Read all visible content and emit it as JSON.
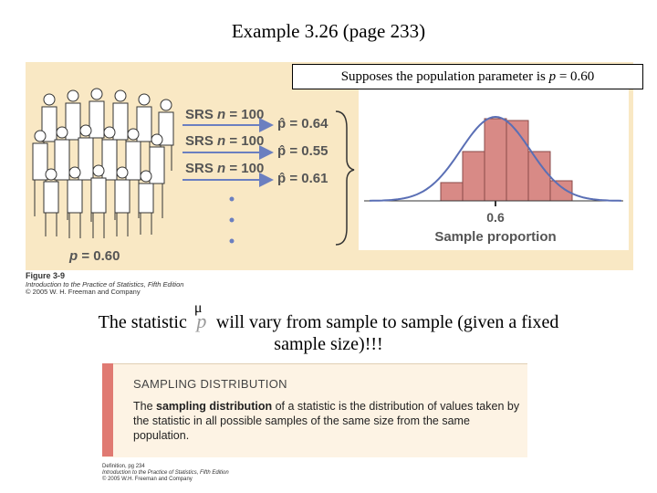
{
  "slide": {
    "title": "Example 3.26 (page 233)"
  },
  "figure": {
    "callout_prefix": "Supposes the population parameter is ",
    "callout_var": "p",
    "callout_suffix": " = 0.60",
    "samples": [
      {
        "srs_prefix": "SRS ",
        "srs_var": "n",
        "srs_suffix": " = 100",
        "phat": "p̂ = 0.64"
      },
      {
        "srs_prefix": "SRS ",
        "srs_var": "n",
        "srs_suffix": " = 100",
        "phat": "p̂ = 0.55"
      },
      {
        "srs_prefix": "SRS ",
        "srs_var": "n",
        "srs_suffix": " = 100",
        "phat": "p̂ = 0.61"
      }
    ],
    "population_var": "p",
    "population_value": " = 0.60",
    "axis_tick": "0.6",
    "axis_label": "Sample proportion",
    "caption_title": "Figure 3-9",
    "caption_book": "Introduction to the Practice of Statistics, Fifth Edition",
    "caption_copyright": "© 2005 W. H. Freeman and Company",
    "colors": {
      "panel": "#f9e8c4",
      "bars": "#d88a86",
      "curve": "#5a6fb5",
      "arrows": "#6b7fc0"
    }
  },
  "statement": {
    "before": "The statistic",
    "symbol": "p",
    "hat": "μ",
    "after": "will vary from sample to sample (given a fixed",
    "line2": "sample size)!!!"
  },
  "definition": {
    "heading": "SAMPLING DISTRIBUTION",
    "text_before": "The ",
    "term": "sampling distribution",
    "text_after": " of a statistic is the distribution of values taken by the statistic in all possible samples of the same size from the same population.",
    "source_line1": "Definition, pg 234",
    "source_line2": "Introduction to the Practice of Statistics, Fifth Edition",
    "source_line3": "© 2005 W.H. Freeman and Company",
    "accent_color": "#e07a72"
  }
}
